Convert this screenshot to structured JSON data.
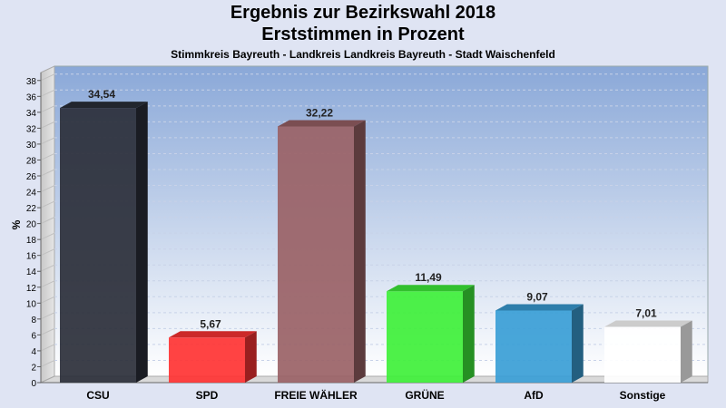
{
  "chart_data": {
    "type": "bar",
    "title": "Ergebnis zur Bezirkswahl 2018",
    "subtitle": "Erststimmen in Prozent",
    "subtitle2": "Stimmkreis Bayreuth - Landkreis Landkreis Bayreuth - Stadt Waischenfeld",
    "ylabel": "%",
    "xlabel": "",
    "ylim": [
      0,
      39
    ],
    "yticks": [
      0,
      2,
      4,
      6,
      8,
      10,
      12,
      14,
      16,
      18,
      20,
      22,
      24,
      26,
      28,
      30,
      32,
      34,
      36,
      38
    ],
    "grid": true,
    "categories": [
      "CSU",
      "SPD",
      "FREIE WÄHLER",
      "GRÜNE",
      "AfD",
      "Sonstige"
    ],
    "values": [
      34.54,
      5.67,
      32.22,
      11.49,
      9.07,
      7.01
    ],
    "value_labels": [
      "34,54",
      "5,67",
      "32,22",
      "11,49",
      "9,07",
      "7,01"
    ],
    "colors": [
      "#2b2f3a",
      "#ff3333",
      "#9a6266",
      "#3ff03a",
      "#3a9ed6",
      "#ffffff"
    ]
  }
}
